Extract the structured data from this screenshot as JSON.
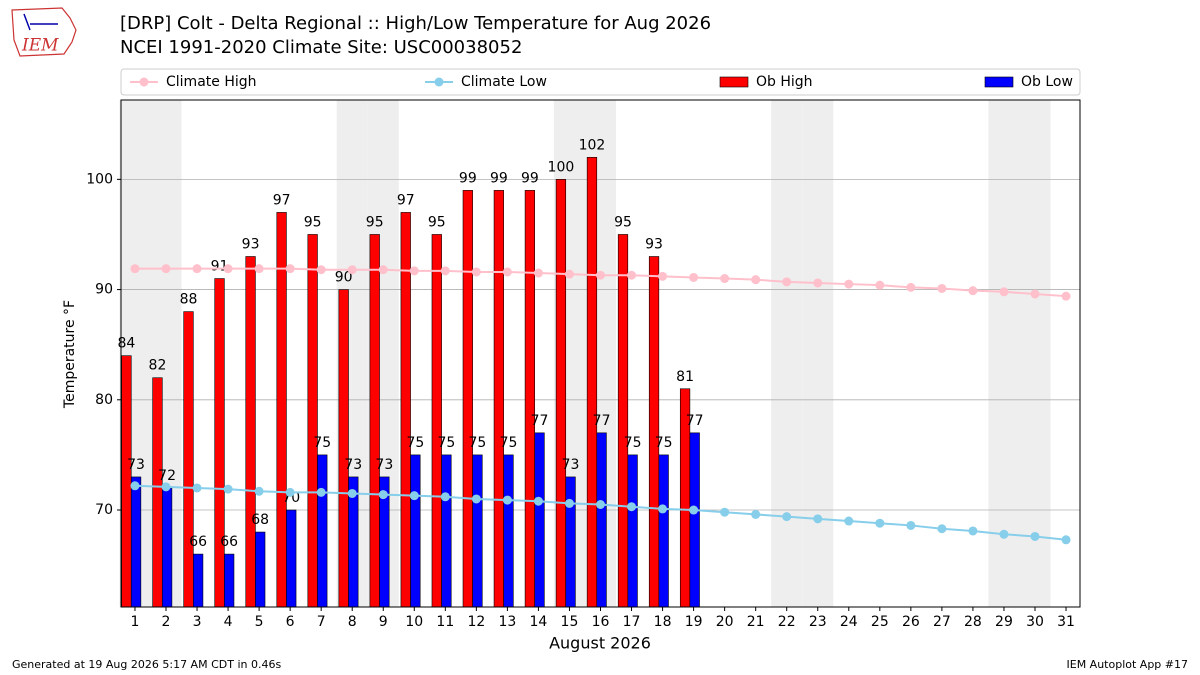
{
  "chart_data": {
    "type": "bar",
    "logo": "IEM",
    "title": "[DRP] Colt - Delta Regional :: High/Low Temperature for Aug 2026",
    "subtitle": "NCEI 1991-2020 Climate Site: USC00038052",
    "x_label": "August 2026",
    "y_label": "Temperature °F",
    "footer_left": "Generated at 19 Aug 2026 5:17 AM CDT in 0.46s",
    "footer_right": "IEM Autoplot App #17",
    "x": [
      1,
      2,
      3,
      4,
      5,
      6,
      7,
      8,
      9,
      10,
      11,
      12,
      13,
      14,
      15,
      16,
      17,
      18,
      19,
      20,
      21,
      22,
      23,
      24,
      25,
      26,
      27,
      28,
      29,
      30,
      31
    ],
    "xlim": [
      0.55,
      31.45
    ],
    "ylim": [
      61.2,
      107.2
    ],
    "yticks": [
      70,
      80,
      90,
      100
    ],
    "grid": true,
    "legend": "top",
    "shaded_days": [
      1,
      2,
      8,
      9,
      15,
      16,
      22,
      23,
      29,
      30
    ],
    "series": [
      {
        "name": "Climate High",
        "type": "line",
        "color": "#ffc0cb",
        "values": [
          91.9,
          91.9,
          91.9,
          91.9,
          91.9,
          91.9,
          91.8,
          91.8,
          91.8,
          91.7,
          91.7,
          91.6,
          91.6,
          91.5,
          91.4,
          91.3,
          91.3,
          91.2,
          91.1,
          91.0,
          90.9,
          90.7,
          90.6,
          90.5,
          90.4,
          90.2,
          90.1,
          89.9,
          89.8,
          89.6,
          89.4
        ]
      },
      {
        "name": "Climate Low",
        "type": "line",
        "color": "#87ceeb",
        "values": [
          72.2,
          72.1,
          72.0,
          71.9,
          71.7,
          71.6,
          71.6,
          71.5,
          71.4,
          71.3,
          71.2,
          71.0,
          70.9,
          70.8,
          70.6,
          70.5,
          70.3,
          70.1,
          70.0,
          69.8,
          69.6,
          69.4,
          69.2,
          69.0,
          68.8,
          68.6,
          68.3,
          68.1,
          67.8,
          67.6,
          67.3
        ]
      },
      {
        "name": "Ob High",
        "type": "bar",
        "color": "#ff0000",
        "values": [
          84,
          82,
          88,
          91,
          93,
          97,
          95,
          90,
          95,
          97,
          95,
          99,
          99,
          99,
          100,
          102,
          95,
          93,
          81,
          null,
          null,
          null,
          null,
          null,
          null,
          null,
          null,
          null,
          null,
          null,
          null
        ]
      },
      {
        "name": "Ob Low",
        "type": "bar",
        "color": "#0000ff",
        "values": [
          73,
          72,
          66,
          66,
          68,
          70,
          75,
          73,
          73,
          75,
          75,
          75,
          75,
          77,
          73,
          77,
          75,
          75,
          77,
          null,
          null,
          null,
          null,
          null,
          null,
          null,
          null,
          null,
          null,
          null,
          null
        ]
      }
    ]
  }
}
